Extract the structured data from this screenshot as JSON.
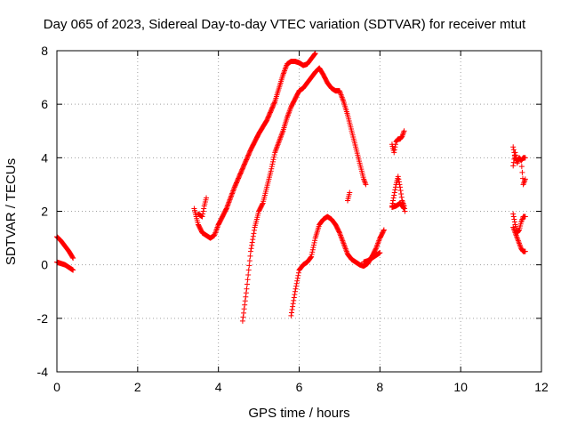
{
  "chart_data": {
    "type": "scatter",
    "title": "Day 065 of 2023, Sidereal Day-to-day VTEC variation (SDTVAR) for receiver mtut",
    "xlabel": "GPS time / hours",
    "ylabel": "SDTVAR / TECUs",
    "xlim": [
      0,
      12
    ],
    "ylim": [
      -4,
      8
    ],
    "xticks": [
      "0",
      "2",
      "4",
      "6",
      "8",
      "10",
      "12"
    ],
    "yticks": [
      "-4",
      "-2",
      "0",
      "2",
      "4",
      "6",
      "8"
    ],
    "grid": true,
    "legend": "none",
    "marker": "plus",
    "color": "#ff0000",
    "series": [
      {
        "x": [
          0.0,
          0.1,
          0.2,
          0.3,
          0.4
        ],
        "y": [
          1.05,
          0.9,
          0.7,
          0.5,
          0.25
        ]
      },
      {
        "x": [
          0.0,
          0.1,
          0.2,
          0.3,
          0.4
        ],
        "y": [
          0.1,
          0.05,
          0.0,
          -0.1,
          -0.2
        ]
      },
      {
        "x": [
          3.4,
          3.5,
          3.6,
          3.7,
          3.8,
          3.9,
          4.0,
          4.2,
          4.4,
          4.6,
          4.8,
          5.0,
          5.2,
          5.4,
          5.5,
          5.6,
          5.7,
          5.8,
          5.9,
          6.0,
          6.1,
          6.2,
          6.3,
          6.4
        ],
        "y": [
          2.1,
          1.5,
          1.2,
          1.1,
          1.0,
          1.1,
          1.5,
          2.1,
          2.9,
          3.6,
          4.3,
          4.9,
          5.4,
          6.1,
          6.6,
          7.1,
          7.5,
          7.6,
          7.6,
          7.55,
          7.45,
          7.5,
          7.7,
          7.9
        ]
      },
      {
        "x": [
          3.5,
          3.6,
          3.65,
          3.7
        ],
        "y": [
          1.9,
          1.8,
          2.2,
          2.5
        ]
      },
      {
        "x": [
          4.6,
          4.7,
          4.8,
          4.9,
          5.0,
          5.1,
          5.2,
          5.3,
          5.4,
          5.5,
          5.6,
          5.7,
          5.8,
          5.9,
          6.0,
          6.1,
          6.2,
          6.3,
          6.4,
          6.5,
          6.6,
          6.7,
          6.8,
          6.9,
          7.0,
          7.1,
          7.2,
          7.3,
          7.4,
          7.5,
          7.6,
          7.65
        ],
        "y": [
          -2.1,
          -0.9,
          0.5,
          1.4,
          2.0,
          2.3,
          2.9,
          3.5,
          4.2,
          4.6,
          5.0,
          5.5,
          5.9,
          6.2,
          6.5,
          6.6,
          6.8,
          7.0,
          7.2,
          7.35,
          7.1,
          6.8,
          6.6,
          6.5,
          6.5,
          6.1,
          5.6,
          5.0,
          4.4,
          3.8,
          3.2,
          3.0
        ]
      },
      {
        "x": [
          5.8,
          5.9,
          6.0,
          6.1,
          6.2,
          6.3,
          6.4,
          6.5,
          6.6,
          6.7,
          6.8,
          6.9,
          7.0,
          7.1,
          7.2,
          7.3,
          7.4,
          7.5,
          7.6,
          7.7,
          7.8,
          7.9,
          8.0,
          8.1
        ],
        "y": [
          -1.9,
          -1.0,
          -0.2,
          0.0,
          0.1,
          0.3,
          1.0,
          1.5,
          1.7,
          1.8,
          1.7,
          1.5,
          1.2,
          0.8,
          0.4,
          0.2,
          0.1,
          0.0,
          -0.05,
          0.05,
          0.3,
          0.6,
          1.0,
          1.3
        ]
      },
      {
        "x": [
          7.2,
          7.25
        ],
        "y": [
          2.4,
          2.7
        ]
      },
      {
        "x": [
          7.6,
          7.7,
          7.8,
          7.9,
          8.0
        ],
        "y": [
          0.1,
          0.15,
          0.25,
          0.35,
          0.45
        ]
      },
      {
        "x": [
          8.3,
          8.35,
          8.4,
          8.45,
          8.5,
          8.55,
          8.6
        ],
        "y": [
          4.5,
          4.2,
          4.6,
          4.7,
          4.7,
          4.8,
          5.0
        ]
      },
      {
        "x": [
          8.3,
          8.35,
          8.4,
          8.45,
          8.5,
          8.55,
          8.6,
          8.62
        ],
        "y": [
          2.2,
          2.6,
          3.0,
          3.3,
          2.9,
          2.4,
          2.2,
          2.0
        ]
      },
      {
        "x": [
          8.3,
          8.4,
          8.5,
          8.6
        ],
        "y": [
          2.15,
          2.2,
          2.3,
          2.1
        ]
      },
      {
        "x": [
          11.3,
          11.35,
          11.4,
          11.45,
          11.5,
          11.55,
          11.6
        ],
        "y": [
          4.4,
          4.0,
          3.9,
          4.0,
          3.9,
          4.0,
          4.0
        ]
      },
      {
        "x": [
          11.3,
          11.35,
          11.4,
          11.45,
          11.5,
          11.55,
          11.6
        ],
        "y": [
          3.7,
          4.2,
          3.8,
          4.0,
          3.9,
          3.0,
          3.2
        ]
      },
      {
        "x": [
          11.3,
          11.35,
          11.4,
          11.45,
          11.5,
          11.55,
          11.6
        ],
        "y": [
          1.9,
          1.5,
          1.2,
          1.3,
          1.6,
          1.8,
          1.8
        ]
      },
      {
        "x": [
          11.3,
          11.35,
          11.4,
          11.45,
          11.5,
          11.55,
          11.6
        ],
        "y": [
          1.4,
          1.2,
          1.0,
          0.8,
          0.6,
          0.5,
          0.5
        ]
      }
    ]
  }
}
